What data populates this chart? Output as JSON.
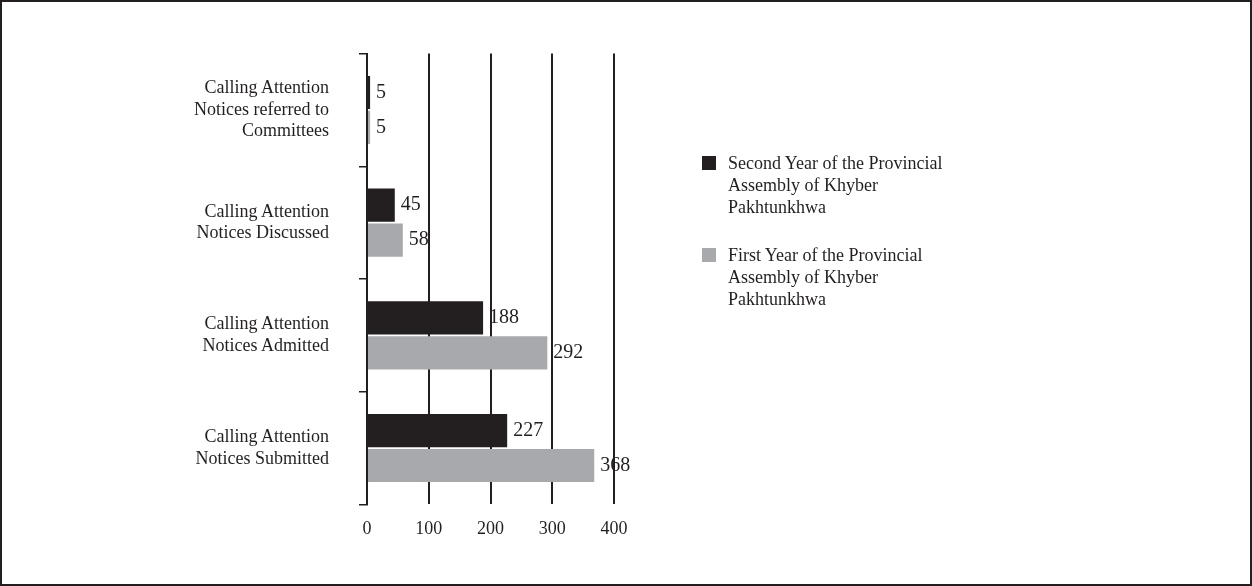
{
  "chart_data": {
    "type": "bar",
    "orientation": "horizontal",
    "categories": [
      "Calling Attention Notices referred to Committees",
      "Calling Attention Notices Discussed",
      "Calling Attention Notices Admitted",
      "Calling Attention Notices Submitted"
    ],
    "series": [
      {
        "name": "Second Year of the Provincial Assembly of Khyber Pakhtunkhwa",
        "color": "#231f20",
        "values": [
          5,
          45,
          188,
          227
        ]
      },
      {
        "name": "First Year of the Provincial Assembly of Khyber Pakhtunkhwa",
        "color": "#a7a9ac",
        "values": [
          5,
          58,
          292,
          368
        ]
      }
    ],
    "xlim": [
      0,
      400
    ],
    "xticks": [
      0,
      100,
      200,
      300,
      400
    ],
    "grid": "x",
    "legend": "right",
    "data_labels": true
  }
}
